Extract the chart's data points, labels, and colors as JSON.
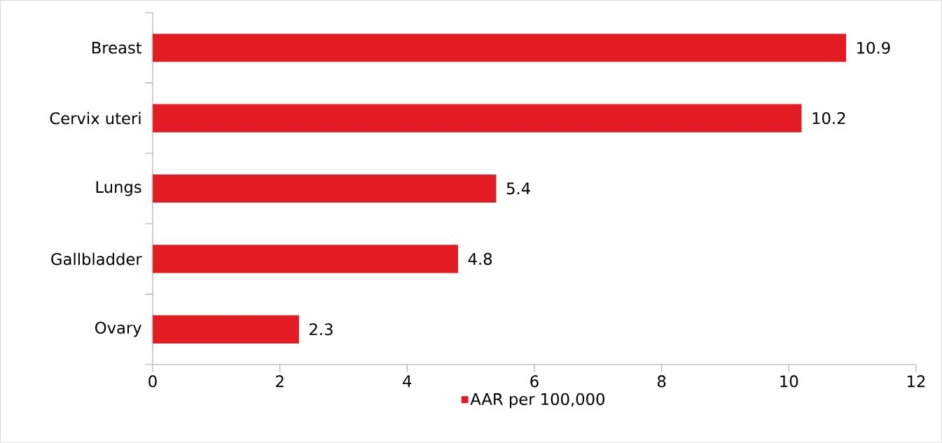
{
  "chart_data": {
    "type": "bar",
    "orientation": "horizontal",
    "categories": [
      "Breast",
      "Cervix uteri",
      "Lungs",
      "Gallbladder",
      "Ovary"
    ],
    "series": [
      {
        "name": "AAR per 100,000",
        "color": "#e31b23",
        "values": [
          10.9,
          10.2,
          5.4,
          4.8,
          2.3
        ]
      }
    ],
    "xlim": [
      0,
      12
    ],
    "xticks": [
      0,
      2,
      4,
      6,
      8,
      10,
      12
    ],
    "data_labels": true,
    "legend": "bottom",
    "grid": false
  }
}
